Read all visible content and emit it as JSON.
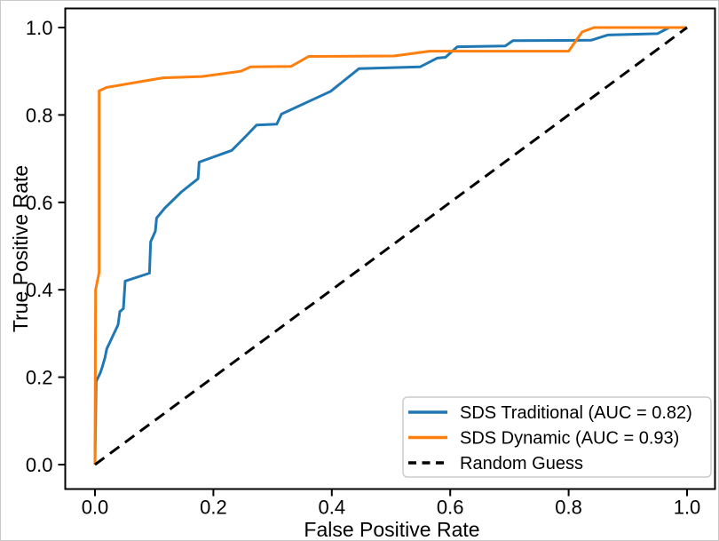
{
  "chart_data": {
    "type": "line",
    "title": "",
    "xlabel": "False Positive Rate",
    "ylabel": "True Positive Rate",
    "xlim": [
      -0.05,
      1.05
    ],
    "ylim": [
      -0.05,
      1.05
    ],
    "xticks": [
      0.0,
      0.2,
      0.4,
      0.6,
      0.8,
      1.0
    ],
    "yticks": [
      0.0,
      0.2,
      0.4,
      0.6,
      0.8,
      1.0
    ],
    "grid": false,
    "legend_position": "lower right",
    "colors": {
      "sds_traditional": "#1f77b4",
      "sds_dynamic": "#ff7f0e",
      "random_guess": "#000000",
      "spine": "#000000",
      "legend_border": "#cccccc"
    },
    "series": [
      {
        "name": "SDS Traditional (AUC = 0.82)",
        "id": "sds-traditional",
        "color": "#1f77b4",
        "style": "solid",
        "points": [
          [
            0.0,
            0.0
          ],
          [
            0.002,
            0.19
          ],
          [
            0.009,
            0.21
          ],
          [
            0.012,
            0.222
          ],
          [
            0.017,
            0.245
          ],
          [
            0.02,
            0.265
          ],
          [
            0.039,
            0.32
          ],
          [
            0.042,
            0.35
          ],
          [
            0.048,
            0.357
          ],
          [
            0.051,
            0.42
          ],
          [
            0.092,
            0.438
          ],
          [
            0.094,
            0.51
          ],
          [
            0.102,
            0.534
          ],
          [
            0.104,
            0.564
          ],
          [
            0.118,
            0.587
          ],
          [
            0.146,
            0.624
          ],
          [
            0.163,
            0.642
          ],
          [
            0.174,
            0.654
          ],
          [
            0.176,
            0.692
          ],
          [
            0.231,
            0.719
          ],
          [
            0.256,
            0.753
          ],
          [
            0.273,
            0.777
          ],
          [
            0.307,
            0.779
          ],
          [
            0.315,
            0.802
          ],
          [
            0.398,
            0.854
          ],
          [
            0.446,
            0.906
          ],
          [
            0.549,
            0.91
          ],
          [
            0.578,
            0.93
          ],
          [
            0.592,
            0.932
          ],
          [
            0.612,
            0.956
          ],
          [
            0.693,
            0.958
          ],
          [
            0.706,
            0.97
          ],
          [
            0.838,
            0.971
          ],
          [
            0.866,
            0.983
          ],
          [
            0.95,
            0.986
          ],
          [
            0.97,
            1.0
          ],
          [
            1.0,
            1.0
          ]
        ]
      },
      {
        "name": "SDS Dynamic (AUC = 0.93)",
        "id": "sds-dynamic",
        "color": "#ff7f0e",
        "style": "solid",
        "points": [
          [
            0.0,
            0.0
          ],
          [
            0.001,
            0.4
          ],
          [
            0.007,
            0.44
          ],
          [
            0.007,
            0.855
          ],
          [
            0.02,
            0.863
          ],
          [
            0.08,
            0.877
          ],
          [
            0.115,
            0.885
          ],
          [
            0.181,
            0.888
          ],
          [
            0.246,
            0.9
          ],
          [
            0.263,
            0.91
          ],
          [
            0.331,
            0.911
          ],
          [
            0.361,
            0.934
          ],
          [
            0.505,
            0.935
          ],
          [
            0.565,
            0.946
          ],
          [
            0.8,
            0.946
          ],
          [
            0.823,
            0.99
          ],
          [
            0.843,
            1.0
          ],
          [
            1.0,
            1.0
          ]
        ]
      },
      {
        "name": "Random Guess",
        "id": "random-guess",
        "color": "#000000",
        "style": "dashed",
        "points": [
          [
            0.0,
            0.0
          ],
          [
            1.0,
            1.0
          ]
        ]
      }
    ]
  }
}
